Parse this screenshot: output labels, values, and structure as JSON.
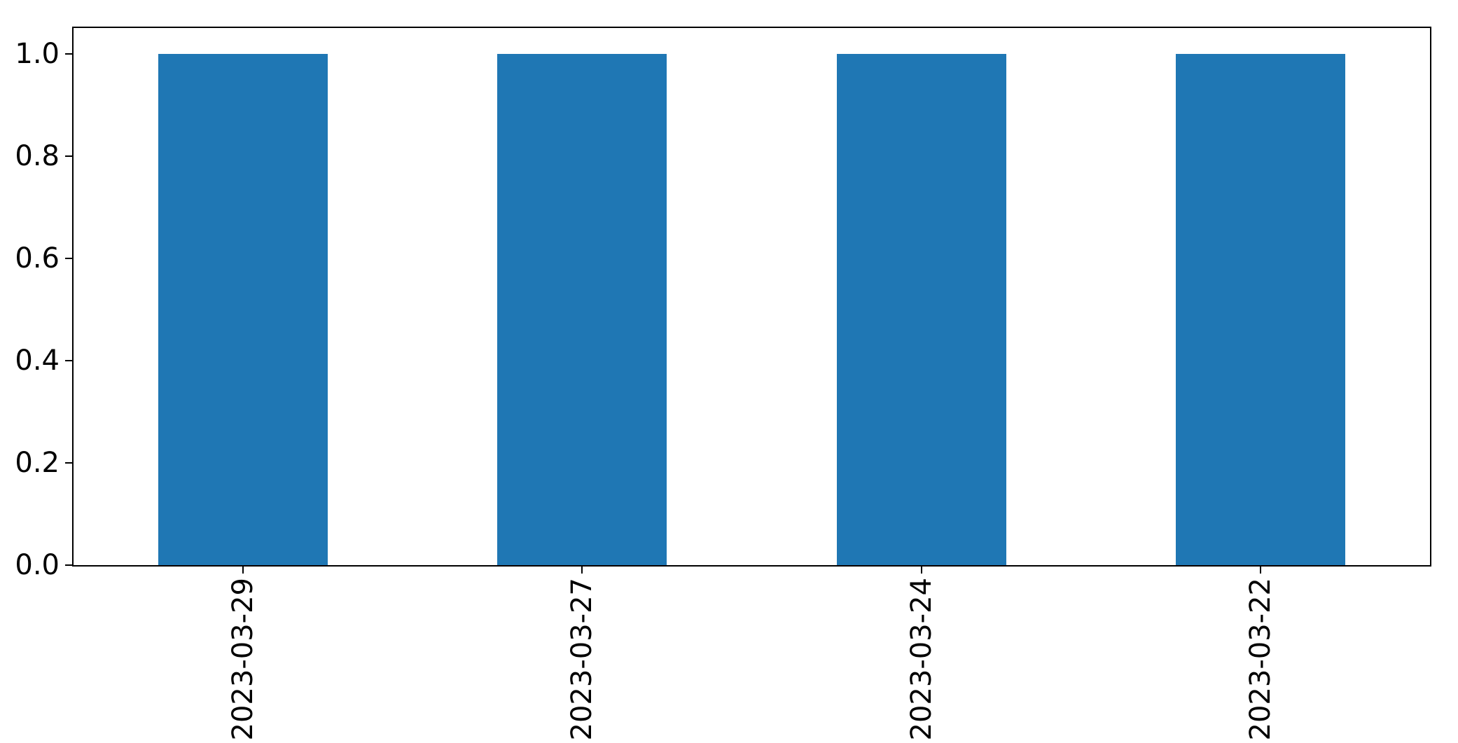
{
  "chart_data": {
    "type": "bar",
    "categories": [
      "2023-03-29",
      "2023-03-27",
      "2023-03-24",
      "2023-03-22"
    ],
    "values": [
      1.0,
      1.0,
      1.0,
      1.0
    ],
    "title": "",
    "xlabel": "",
    "ylabel": "",
    "ylim": [
      0,
      1.05
    ],
    "yticks": [
      0.0,
      0.2,
      0.4,
      0.6,
      0.8,
      1.0
    ],
    "ytick_labels": [
      "0.0",
      "0.2",
      "0.4",
      "0.6",
      "0.8",
      "1.0"
    ],
    "bar_color": "#1f77b4",
    "bar_width_fraction": 0.5,
    "x_tick_rotation": 90,
    "grid": false,
    "legend_position": "none"
  }
}
